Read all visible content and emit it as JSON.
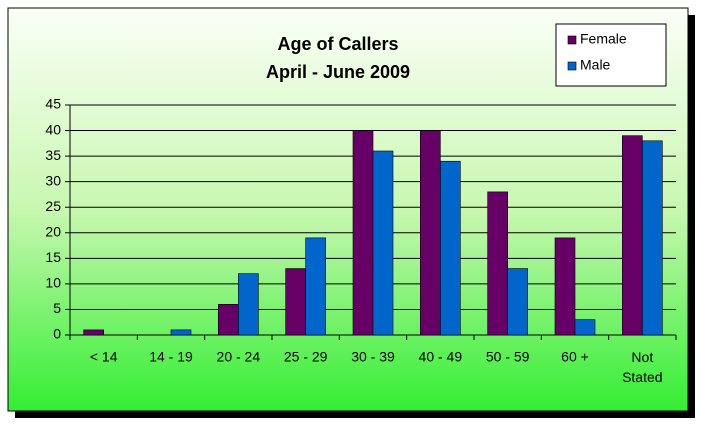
{
  "chart_data": {
    "type": "bar",
    "title": "Age of Callers",
    "subtitle": "April - June 2009",
    "categories": [
      "< 14",
      "14 - 19",
      "20 - 24",
      "25 - 29",
      "30 - 39",
      "40 - 49",
      "50 - 59",
      "60 +",
      "Not Stated"
    ],
    "series": [
      {
        "name": "Female",
        "color": "#660066",
        "values": [
          1,
          0,
          6,
          13,
          40,
          40,
          28,
          19,
          39
        ]
      },
      {
        "name": "Male",
        "color": "#0066cc",
        "values": [
          0,
          1,
          12,
          19,
          36,
          34,
          13,
          3,
          38
        ]
      }
    ],
    "ylim": [
      0,
      45
    ],
    "yticks": [
      0,
      5,
      10,
      15,
      20,
      25,
      30,
      35,
      40,
      45
    ],
    "grid": true,
    "legend": "top-right"
  }
}
